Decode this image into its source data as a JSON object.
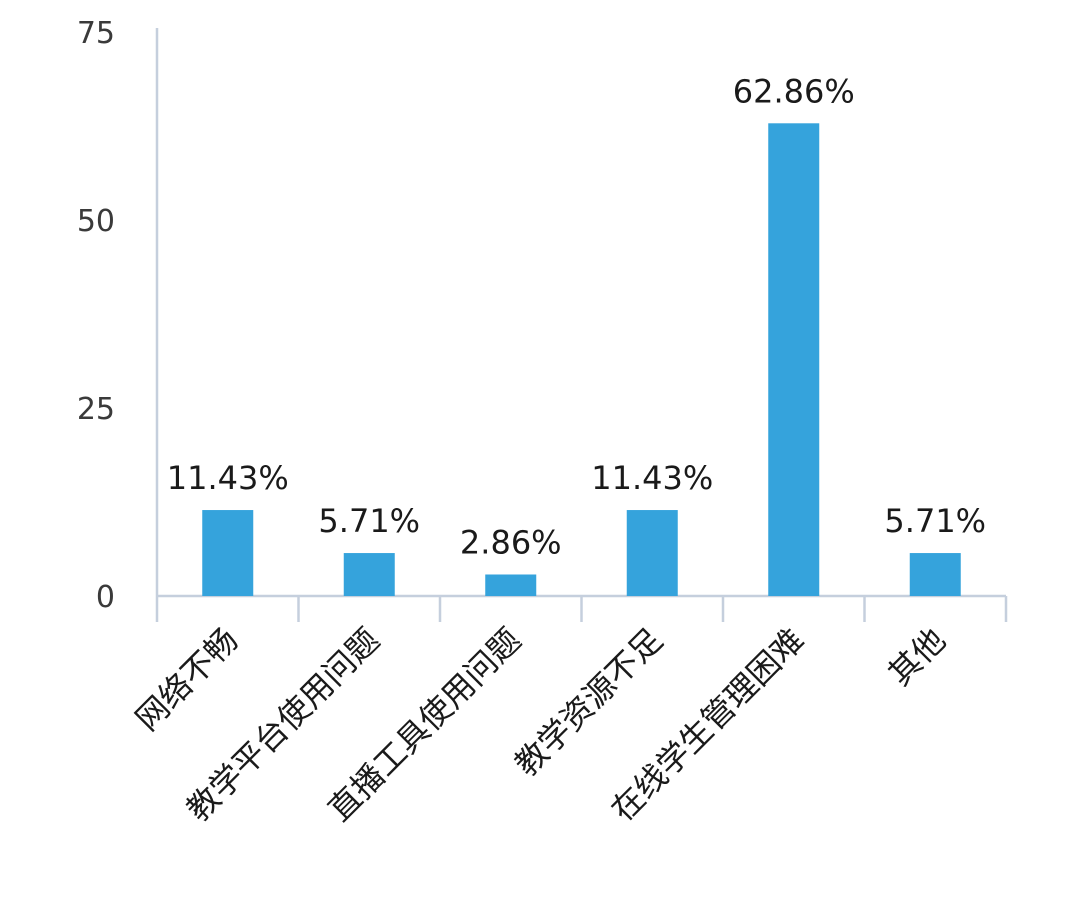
{
  "chart_data": {
    "type": "bar",
    "categories": [
      "网络不畅",
      "教学平台使用问题",
      "直播工具使用问题",
      "教学资源不足",
      "在线学生管理困难",
      "其他"
    ],
    "values": [
      11.43,
      5.71,
      2.86,
      11.43,
      62.86,
      5.71
    ],
    "data_labels": [
      "11.43%",
      "5.71%",
      "2.86%",
      "11.43%",
      "62.86%",
      "5.71%"
    ],
    "y_ticks": [
      "0",
      "25",
      "50",
      "75"
    ],
    "ylim": [
      0,
      75
    ],
    "grid": false,
    "legend": "none",
    "title": "",
    "xlabel": "",
    "ylabel": "",
    "colors": {
      "bar": "#35A3DC",
      "axis": "#c5cfdd",
      "text": "#1a1a1a",
      "tick_text": "#3a3a3a"
    }
  }
}
